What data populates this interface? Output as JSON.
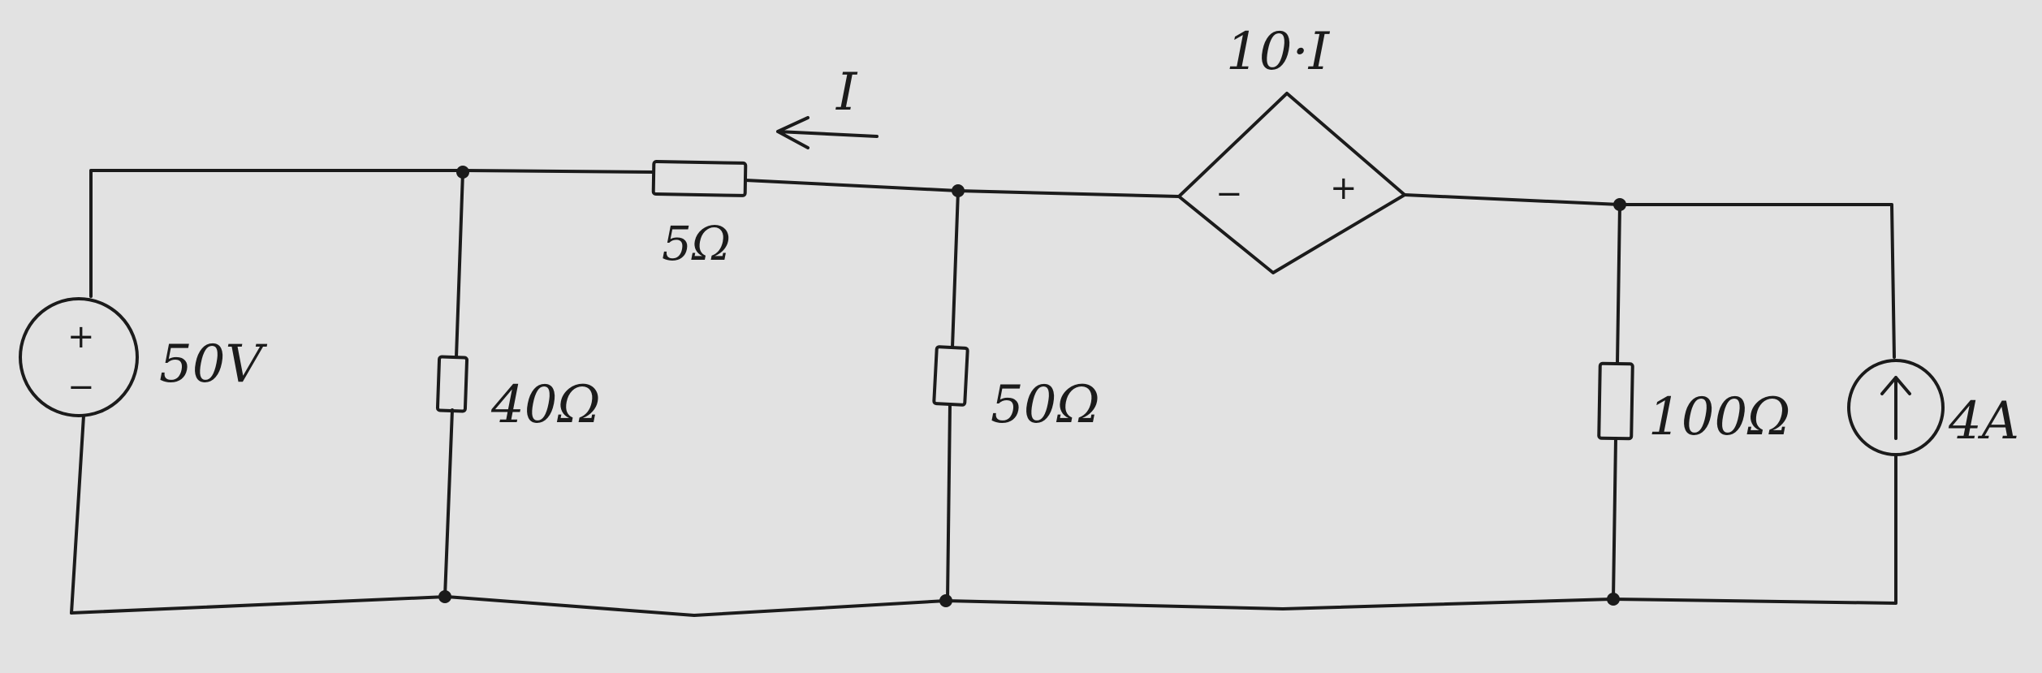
{
  "labels": {
    "source_v": "50V",
    "r40": "40Ω",
    "r5": "5Ω",
    "r50": "50Ω",
    "r100": "100Ω",
    "source_i": "4A",
    "dep_source": "10·I",
    "current": "I",
    "plus": "+",
    "minus": "−"
  },
  "colors": {
    "ink": "#1b1b1b",
    "paper": "#e2e2e2"
  },
  "icons": {
    "voltage_source": "circle-plus-minus-icon",
    "current_source": "circle-up-arrow-icon",
    "dependent_source": "diamond-source-icon",
    "current_arrow": "left-arrow-icon"
  }
}
